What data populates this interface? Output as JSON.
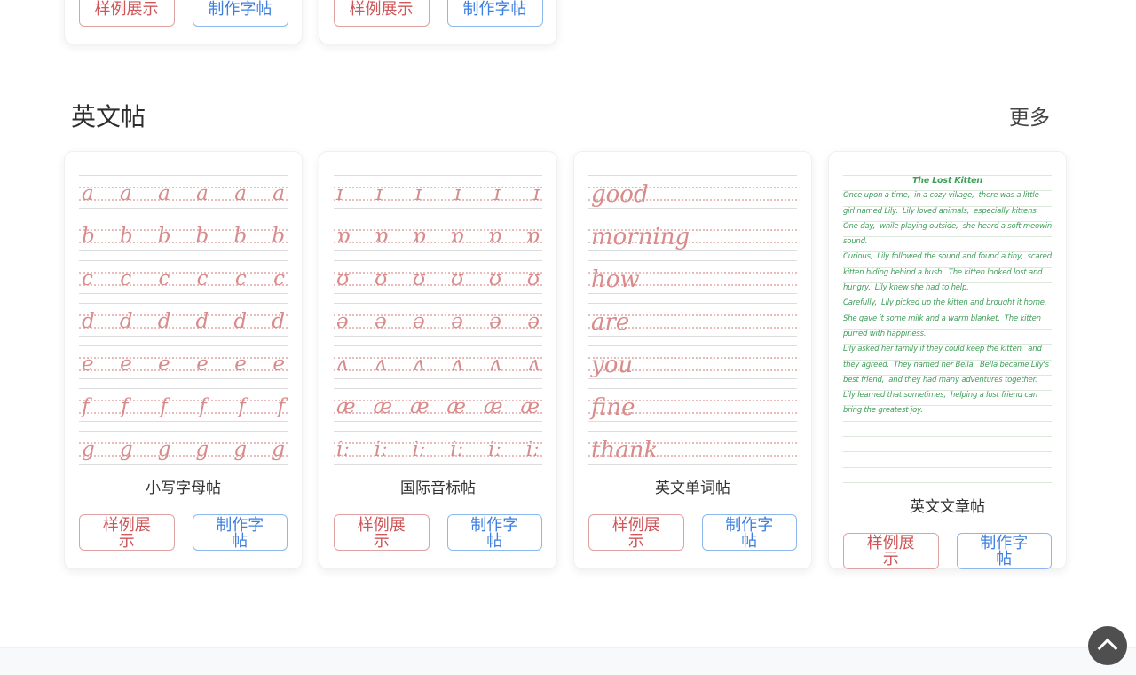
{
  "section": {
    "title": "英文帖",
    "more_label": "更多"
  },
  "buttons": {
    "sample_label": "样例展示",
    "make_label": "制作字帖"
  },
  "cards": [
    {
      "title": "小写字母帖",
      "type": "grid",
      "repeat": 6,
      "rows": [
        "a",
        "b",
        "c",
        "d",
        "e",
        "f",
        "g"
      ]
    },
    {
      "title": "国际音标帖",
      "type": "grid",
      "repeat": 6,
      "rows": [
        "ɪ",
        "ɒ",
        "ʊ",
        "ə",
        "ʌ",
        "æ",
        "iː"
      ]
    },
    {
      "title": "英文单词帖",
      "type": "words",
      "rows": [
        "good",
        "morning",
        "how",
        "are",
        "you",
        "fine",
        "thank"
      ]
    },
    {
      "title": "英文文章帖",
      "type": "article",
      "article_title": "The Lost Kitten",
      "lines": [
        "Once upon a time,  in a cozy village,  there was a little",
        "girl named Lily.  Lily loved animals,  especially kittens.",
        "One day,  while playing outside,  she heard a soft meowing",
        "sound.",
        "Curious,  Lily followed the sound and found a tiny,  scared",
        "kitten hiding behind a bush.  The kitten looked lost and",
        "hungry.  Lily knew she had to help.",
        "Carefully,  Lily picked up the kitten and brought it home.",
        "She gave it some milk and a warm blanket.  The kitten",
        "purred with happiness.",
        "Lily asked her family if they could keep the kitten,  and",
        "they agreed.  They named her Bella.  Bella became Lily's",
        "best friend,  and they had many adventures together.",
        "Lily learned that sometimes,  helping a lost friend can",
        "bring the greatest joy."
      ],
      "empty_lines": 4
    }
  ],
  "colors": {
    "accent_red": "#cf5659",
    "accent_blue": "#3d7fe0",
    "practice_pink": "#d98b8b",
    "guide_dotted_pink": "#e9bcbc",
    "guide_solid_gray": "#dcdcdc",
    "article_green": "#3f9e58"
  },
  "back_to_top": {
    "icon": "chevron-up-icon"
  }
}
